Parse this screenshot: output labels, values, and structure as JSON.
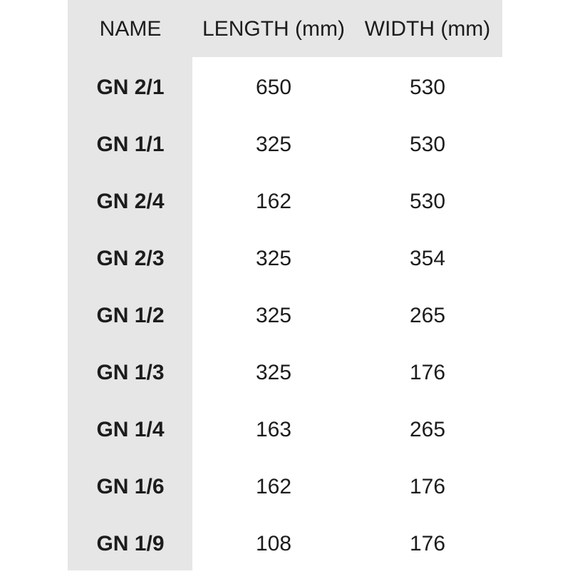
{
  "table": {
    "headers": [
      "NAME",
      "LENGTH (mm)",
      "WIDTH (mm)"
    ],
    "rows": [
      [
        "GN 2/1",
        650,
        530
      ],
      [
        "GN 1/1",
        325,
        530
      ],
      [
        "GN 2/4",
        162,
        530
      ],
      [
        "GN 2/3",
        325,
        354
      ],
      [
        "GN 1/2",
        325,
        265
      ],
      [
        "GN 1/3",
        325,
        176
      ],
      [
        "GN 1/4",
        163,
        265
      ],
      [
        "GN 1/6",
        162,
        176
      ],
      [
        "GN 1/9",
        108,
        176
      ]
    ]
  }
}
